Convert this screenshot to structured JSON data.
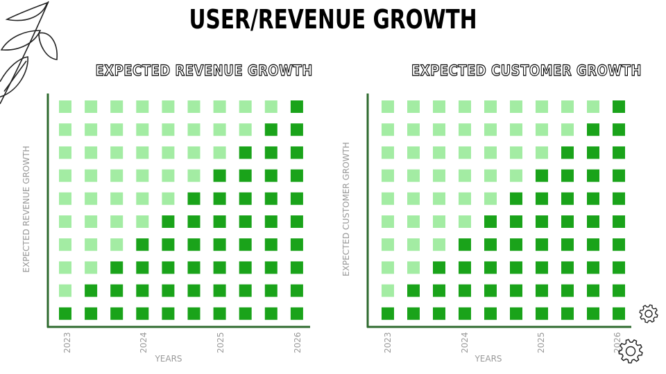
{
  "title": "USER/REVENUE GROWTH",
  "colors": {
    "light": "#a3eca3",
    "dark": "#1aa31a",
    "axis": "#2d6a2d"
  },
  "chart_data": [
    {
      "type": "heatmap",
      "title": "EXPECTED REVENUE GROWTH",
      "xlabel": "YEARS",
      "ylabel": "EXPECTED REVENUE GROWTH",
      "xtick_labels": [
        "2023",
        "2024",
        "2025",
        "2026"
      ],
      "columns": 10,
      "rows": 10,
      "filled_per_column": [
        1,
        2,
        3,
        4,
        5,
        6,
        7,
        8,
        9,
        10
      ]
    },
    {
      "type": "heatmap",
      "title": "EXPECTED CUSTOMER GROWTH",
      "xlabel": "YEARS",
      "ylabel": "EXPECTED CUSTOMER GROWTH",
      "xtick_labels": [
        "2023",
        "2024",
        "2025",
        "2026"
      ],
      "columns": 10,
      "rows": 10,
      "filled_per_column": [
        1,
        2,
        3,
        4,
        5,
        6,
        7,
        8,
        9,
        10
      ]
    }
  ]
}
